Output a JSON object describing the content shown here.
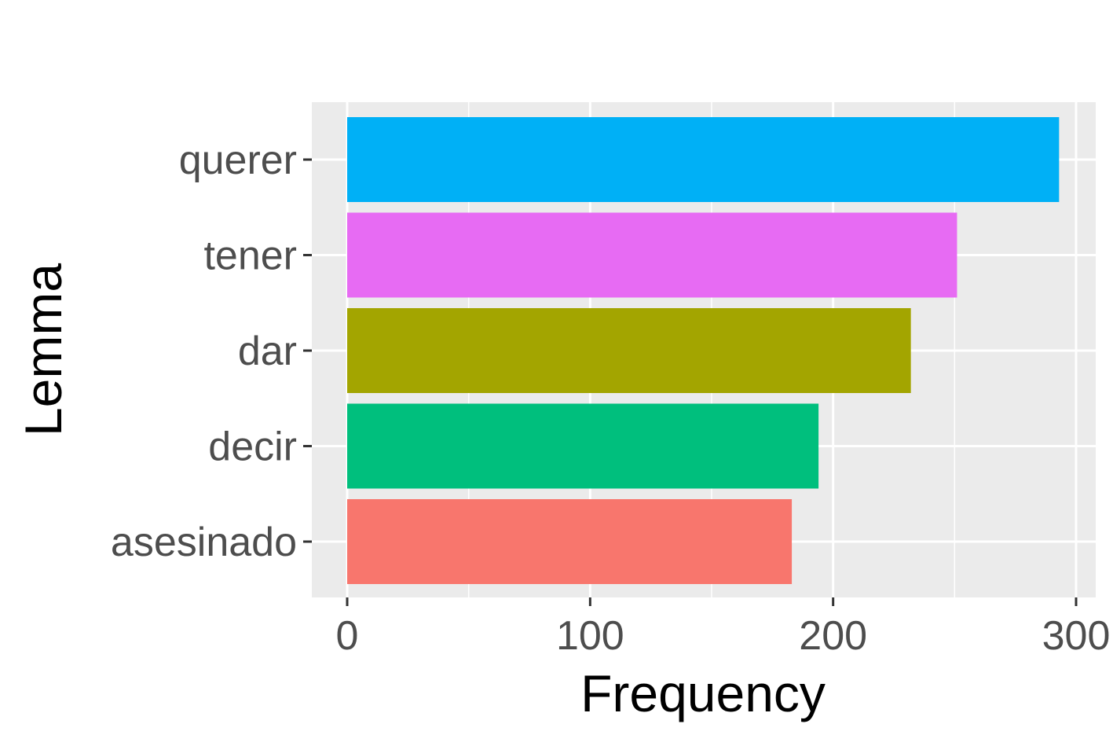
{
  "chart_data": {
    "type": "bar",
    "orientation": "horizontal",
    "title": "",
    "xlabel": "Frequency",
    "ylabel": "Lemma",
    "xlim": [
      0,
      308
    ],
    "x_ticks": [
      0,
      100,
      200,
      300
    ],
    "x_ticks_labels": [
      "0",
      "100",
      "200",
      "300"
    ],
    "x_minor_ticks": [
      50,
      150,
      250
    ],
    "grid": true,
    "legend": "none",
    "categories": [
      "querer",
      "tener",
      "dar",
      "decir",
      "asesinado"
    ],
    "values": [
      293,
      251,
      232,
      194,
      183
    ],
    "colors": [
      "#00B0F6",
      "#E76BF3",
      "#A3A500",
      "#00BF7D",
      "#F8766D"
    ],
    "panel_background": "#EBEBEB",
    "grid_color": "#FFFFFF"
  }
}
